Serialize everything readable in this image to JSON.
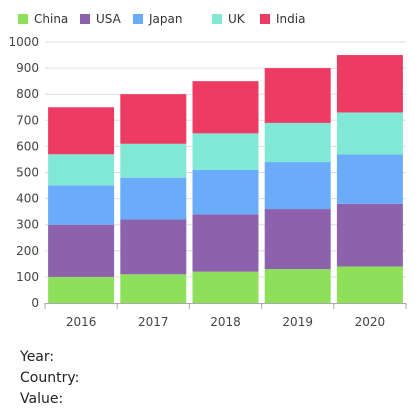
{
  "chart_data": {
    "type": "bar",
    "stacked": true,
    "categories": [
      "2016",
      "2017",
      "2018",
      "2019",
      "2020"
    ],
    "series": [
      {
        "name": "China",
        "color": "#8EE05A",
        "values": [
          100,
          110,
          120,
          130,
          140
        ]
      },
      {
        "name": "USA",
        "color": "#8C62AD",
        "values": [
          200,
          210,
          220,
          230,
          240
        ]
      },
      {
        "name": "Japan",
        "color": "#6AACFA",
        "values": [
          150,
          160,
          170,
          180,
          190
        ]
      },
      {
        "name": "UK",
        "color": "#82E8D6",
        "values": [
          120,
          130,
          140,
          150,
          160
        ]
      },
      {
        "name": "India",
        "color": "#EC3C64",
        "values": [
          180,
          190,
          200,
          210,
          220
        ]
      }
    ],
    "ylim": [
      0,
      1000
    ],
    "yticks": [
      0,
      100,
      200,
      300,
      400,
      500,
      600,
      700,
      800,
      900,
      1000
    ],
    "grid": true,
    "legend": "top-left"
  },
  "info": {
    "year_label": "Year:",
    "country_label": "Country:",
    "value_label": "Value:"
  }
}
